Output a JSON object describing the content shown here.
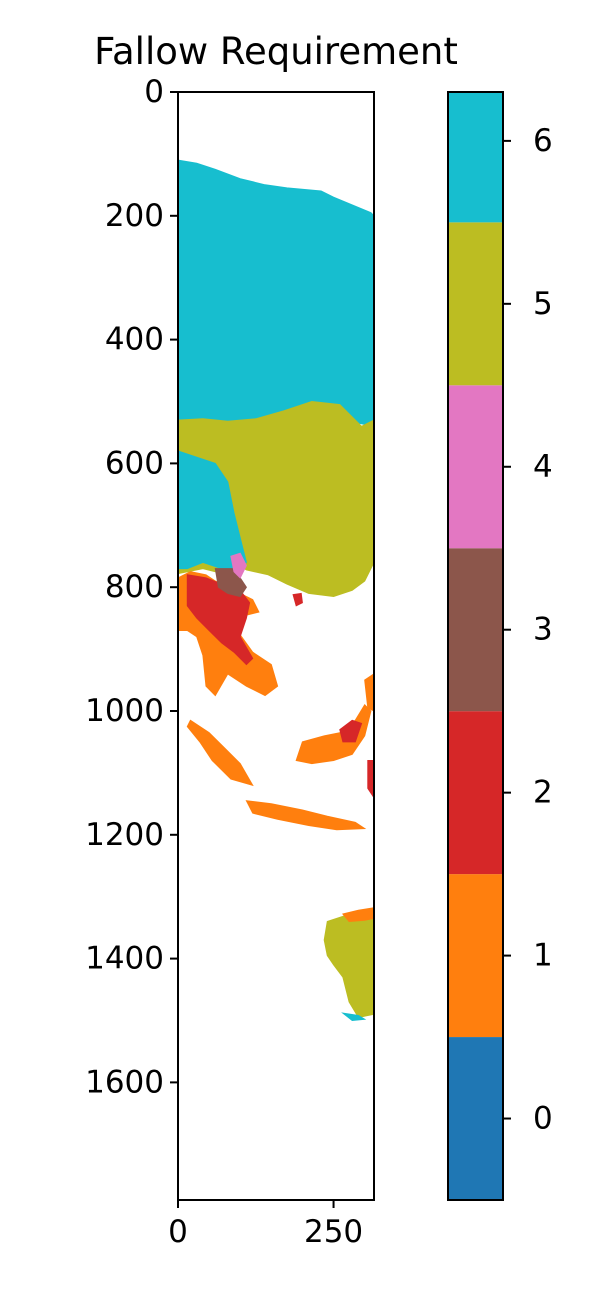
{
  "chart_data": {
    "type": "heatmap",
    "title": "Fallow Requirement",
    "xlabel": "",
    "ylabel": "",
    "x_ticks": [
      0,
      250
    ],
    "y_ticks": [
      0,
      200,
      400,
      600,
      800,
      1000,
      1200,
      1400,
      1600
    ],
    "xlim": [
      0,
      315
    ],
    "ylim": [
      1790,
      0
    ],
    "colorbar": {
      "ticks": [
        0,
        1,
        2,
        3,
        4,
        5,
        6
      ],
      "range": [
        -0.5,
        6.3
      ],
      "bins": [
        {
          "value": 0,
          "color": "#1f77b4"
        },
        {
          "value": 1,
          "color": "#ff7f0e"
        },
        {
          "value": 2,
          "color": "#d62728"
        },
        {
          "value": 3,
          "color": "#8c564b"
        },
        {
          "value": 4,
          "color": "#e377c2"
        },
        {
          "value": 5,
          "color": "#bcbd22"
        },
        {
          "value": 6,
          "color": "#17becf"
        }
      ]
    },
    "regions": [
      {
        "value": 6,
        "points": [
          [
            0,
            110
          ],
          [
            30,
            115
          ],
          [
            60,
            125
          ],
          [
            100,
            140
          ],
          [
            140,
            150
          ],
          [
            175,
            155
          ],
          [
            230,
            160
          ],
          [
            250,
            170
          ],
          [
            310,
            195
          ],
          [
            315,
            200
          ],
          [
            315,
            540
          ],
          [
            290,
            535
          ],
          [
            260,
            505
          ],
          [
            220,
            500
          ],
          [
            170,
            515
          ],
          [
            120,
            530
          ],
          [
            80,
            532
          ],
          [
            30,
            528
          ],
          [
            0,
            530
          ]
        ]
      },
      {
        "value": 5,
        "points": [
          [
            0,
            530
          ],
          [
            40,
            528
          ],
          [
            80,
            532
          ],
          [
            125,
            528
          ],
          [
            170,
            515
          ],
          [
            215,
            500
          ],
          [
            260,
            505
          ],
          [
            295,
            540
          ],
          [
            315,
            530
          ],
          [
            315,
            760
          ],
          [
            300,
            790
          ],
          [
            280,
            805
          ],
          [
            250,
            815
          ],
          [
            210,
            810
          ],
          [
            175,
            795
          ],
          [
            145,
            780
          ],
          [
            110,
            772
          ],
          [
            90,
            760
          ],
          [
            60,
            775
          ],
          [
            40,
            770
          ],
          [
            15,
            775
          ],
          [
            0,
            778
          ],
          [
            0,
            640
          ],
          [
            10,
            615
          ],
          [
            0,
            605
          ]
        ]
      },
      {
        "value": 6,
        "points": [
          [
            0,
            580
          ],
          [
            30,
            590
          ],
          [
            60,
            600
          ],
          [
            80,
            630
          ],
          [
            90,
            680
          ],
          [
            100,
            720
          ],
          [
            110,
            760
          ],
          [
            100,
            770
          ],
          [
            70,
            770
          ],
          [
            40,
            760
          ],
          [
            15,
            770
          ],
          [
            0,
            770
          ]
        ]
      },
      {
        "value": 1,
        "points": [
          [
            0,
            785
          ],
          [
            20,
            775
          ],
          [
            45,
            780
          ],
          [
            60,
            790
          ],
          [
            80,
            800
          ],
          [
            100,
            810
          ],
          [
            120,
            820
          ],
          [
            130,
            840
          ],
          [
            110,
            845
          ],
          [
            95,
            870
          ],
          [
            120,
            905
          ],
          [
            150,
            925
          ],
          [
            160,
            960
          ],
          [
            140,
            975
          ],
          [
            110,
            960
          ],
          [
            80,
            940
          ],
          [
            60,
            975
          ],
          [
            45,
            960
          ],
          [
            40,
            910
          ],
          [
            30,
            880
          ],
          [
            15,
            870
          ],
          [
            0,
            870
          ]
        ]
      },
      {
        "value": 2,
        "points": [
          [
            15,
            780
          ],
          [
            45,
            785
          ],
          [
            70,
            795
          ],
          [
            100,
            805
          ],
          [
            115,
            825
          ],
          [
            110,
            850
          ],
          [
            100,
            880
          ],
          [
            120,
            915
          ],
          [
            110,
            925
          ],
          [
            90,
            905
          ],
          [
            70,
            890
          ],
          [
            50,
            870
          ],
          [
            30,
            850
          ],
          [
            15,
            830
          ]
        ]
      },
      {
        "value": 3,
        "points": [
          [
            60,
            770
          ],
          [
            90,
            770
          ],
          [
            100,
            785
          ],
          [
            110,
            800
          ],
          [
            100,
            815
          ],
          [
            80,
            810
          ],
          [
            65,
            800
          ]
        ]
      },
      {
        "value": 4,
        "points": [
          [
            85,
            750
          ],
          [
            100,
            745
          ],
          [
            110,
            765
          ],
          [
            100,
            785
          ],
          [
            90,
            775
          ]
        ]
      },
      {
        "value": 2,
        "points": [
          [
            185,
            812
          ],
          [
            198,
            810
          ],
          [
            200,
            825
          ],
          [
            190,
            830
          ]
        ]
      },
      {
        "value": 1,
        "points": [
          [
            20,
            1015
          ],
          [
            50,
            1035
          ],
          [
            75,
            1060
          ],
          [
            100,
            1085
          ],
          [
            120,
            1120
          ],
          [
            85,
            1110
          ],
          [
            55,
            1080
          ],
          [
            35,
            1050
          ],
          [
            15,
            1025
          ]
        ]
      },
      {
        "value": 1,
        "points": [
          [
            110,
            1145
          ],
          [
            150,
            1150
          ],
          [
            200,
            1160
          ],
          [
            240,
            1170
          ],
          [
            285,
            1180
          ],
          [
            300,
            1190
          ],
          [
            255,
            1192
          ],
          [
            210,
            1185
          ],
          [
            160,
            1175
          ],
          [
            120,
            1165
          ]
        ]
      },
      {
        "value": 1,
        "points": [
          [
            200,
            1050
          ],
          [
            235,
            1040
          ],
          [
            260,
            1035
          ],
          [
            285,
            1015
          ],
          [
            300,
            990
          ],
          [
            310,
            1000
          ],
          [
            300,
            1040
          ],
          [
            280,
            1070
          ],
          [
            250,
            1080
          ],
          [
            215,
            1085
          ],
          [
            190,
            1080
          ]
        ]
      },
      {
        "value": 2,
        "points": [
          [
            260,
            1030
          ],
          [
            280,
            1015
          ],
          [
            295,
            1020
          ],
          [
            285,
            1050
          ],
          [
            265,
            1050
          ]
        ]
      },
      {
        "value": 1,
        "points": [
          [
            300,
            950
          ],
          [
            315,
            940
          ],
          [
            315,
            1000
          ],
          [
            305,
            995
          ]
        ]
      },
      {
        "value": 2,
        "points": [
          [
            305,
            1080
          ],
          [
            315,
            1080
          ],
          [
            315,
            1140
          ],
          [
            305,
            1125
          ]
        ]
      },
      {
        "value": 5,
        "points": [
          [
            240,
            1340
          ],
          [
            270,
            1330
          ],
          [
            315,
            1320
          ],
          [
            315,
            1490
          ],
          [
            290,
            1495
          ],
          [
            275,
            1470
          ],
          [
            265,
            1430
          ],
          [
            250,
            1410
          ],
          [
            240,
            1395
          ],
          [
            235,
            1370
          ]
        ]
      },
      {
        "value": 1,
        "points": [
          [
            265,
            1328
          ],
          [
            290,
            1322
          ],
          [
            315,
            1318
          ],
          [
            315,
            1335
          ],
          [
            300,
            1338
          ],
          [
            275,
            1340
          ]
        ]
      },
      {
        "value": 6,
        "points": [
          [
            265,
            1488
          ],
          [
            290,
            1492
          ],
          [
            300,
            1498
          ],
          [
            280,
            1500
          ]
        ]
      }
    ]
  }
}
